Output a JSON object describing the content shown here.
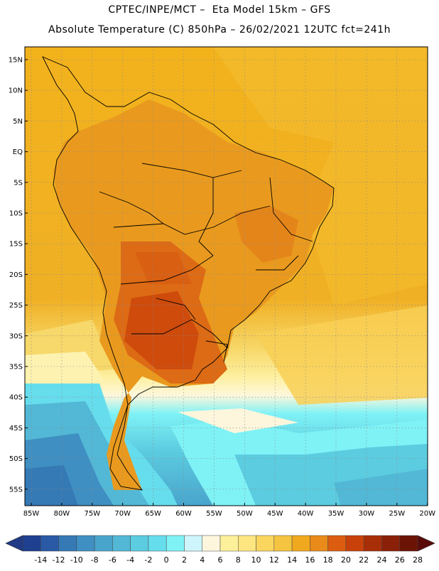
{
  "header": {
    "line1": "CPTEC/INPE/MCT –  Eta Model 15km – GFS",
    "line2": "Absolute Temperature (C) 850hPa – 26/02/2021 12UTC fct=241h"
  },
  "axes": {
    "lat_labels": [
      "15N",
      "10N",
      "5N",
      "EQ",
      "5S",
      "10S",
      "15S",
      "20S",
      "25S",
      "30S",
      "35S",
      "40S",
      "45S",
      "50S",
      "55S"
    ],
    "lon_labels": [
      "85W",
      "80W",
      "75W",
      "70W",
      "65W",
      "60W",
      "55W",
      "50W",
      "45W",
      "40W",
      "35W",
      "30W",
      "25W",
      "20W"
    ]
  },
  "colorbar": {
    "labels": [
      "-14",
      "-12",
      "-10",
      "-8",
      "-6",
      "-4",
      "-2",
      "0",
      "2",
      "4",
      "6",
      "8",
      "10",
      "12",
      "14",
      "16",
      "18",
      "20",
      "22",
      "24",
      "26",
      "28"
    ],
    "colors": [
      "#1f3f8f",
      "#2a5aa5",
      "#3579b5",
      "#3f8fc2",
      "#49a4cc",
      "#52b8d6",
      "#5ccce0",
      "#66dded",
      "#7ff2f6",
      "#cdf5fb",
      "#fdf6dc",
      "#fdf09a",
      "#fde680",
      "#fbd65f",
      "#f5c440",
      "#f0a91e",
      "#e98a1a",
      "#dd5d10",
      "#c8410a",
      "#a82e07",
      "#8a2008",
      "#6b1406"
    ],
    "low_arrow_color": "#203a85",
    "high_arrow_color": "#5a0a08"
  }
}
